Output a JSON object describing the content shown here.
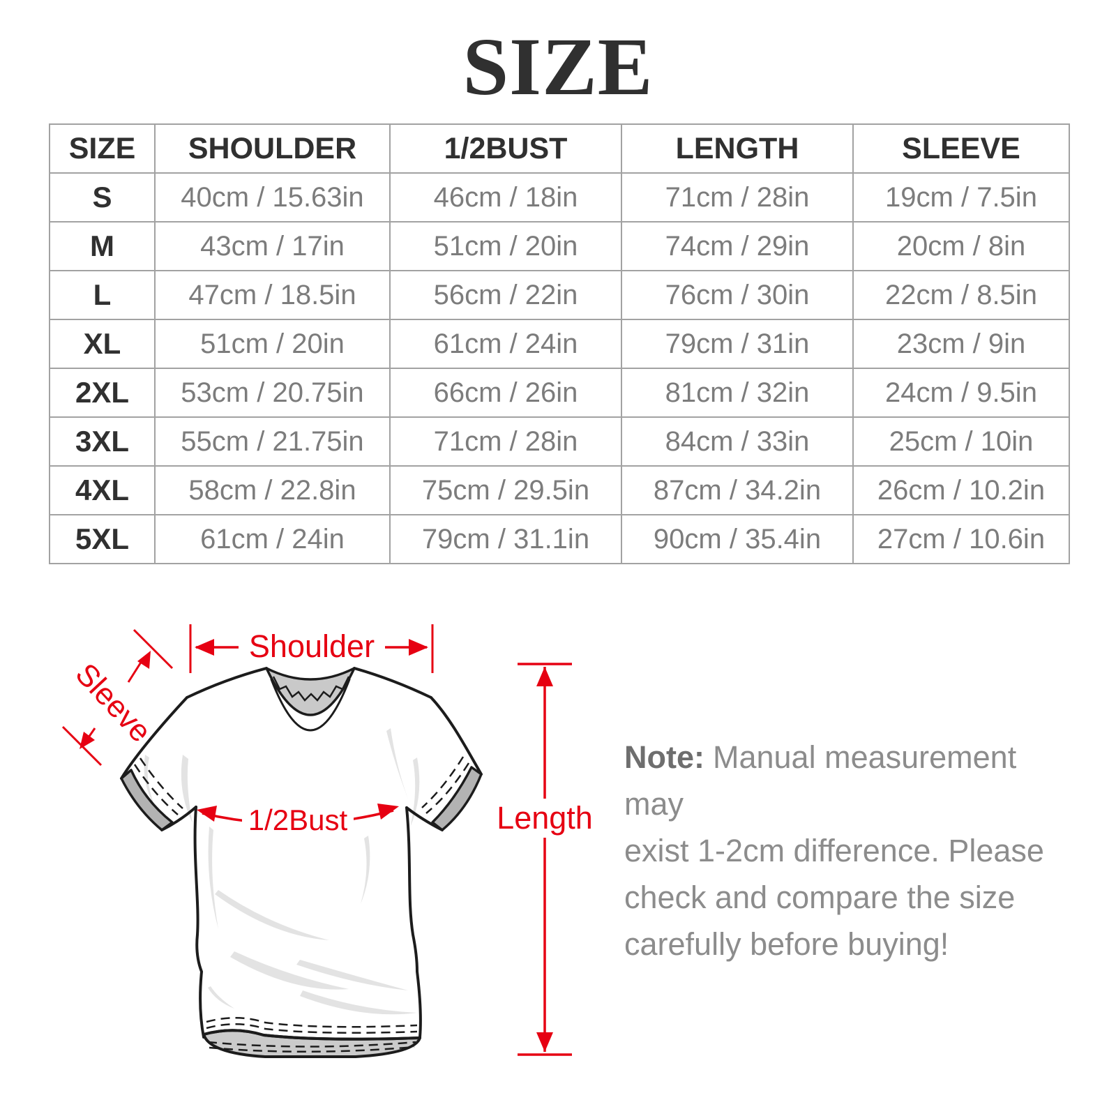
{
  "title": "SIZE",
  "table": {
    "columns": [
      "SIZE",
      "SHOULDER",
      "1/2BUST",
      "LENGTH",
      "SLEEVE"
    ],
    "rows": [
      [
        "S",
        "40cm / 15.63in",
        "46cm / 18in",
        "71cm / 28in",
        "19cm / 7.5in"
      ],
      [
        "M",
        "43cm / 17in",
        "51cm / 20in",
        "74cm / 29in",
        "20cm / 8in"
      ],
      [
        "L",
        "47cm / 18.5in",
        "56cm / 22in",
        "76cm / 30in",
        "22cm / 8.5in"
      ],
      [
        "XL",
        "51cm / 20in",
        "61cm / 24in",
        "79cm / 31in",
        "23cm / 9in"
      ],
      [
        "2XL",
        "53cm / 20.75in",
        "66cm / 26in",
        "81cm / 32in",
        "24cm / 9.5in"
      ],
      [
        "3XL",
        "55cm / 21.75in",
        "71cm / 28in",
        "84cm / 33in",
        "25cm / 10in"
      ],
      [
        "4XL",
        "58cm / 22.8in",
        "75cm / 29.5in",
        "87cm / 34.2in",
        "26cm / 10.2in"
      ],
      [
        "5XL",
        "61cm / 24in",
        "79cm / 31.1in",
        "90cm / 35.4in",
        "27cm / 10.6in"
      ]
    ]
  },
  "diagram": {
    "labels": {
      "shoulder": "Shoulder",
      "sleeve": "Sleeve",
      "bust": "1/2Bust",
      "length": "Length"
    }
  },
  "note": {
    "label": "Note:",
    "line1": "Manual measurement may",
    "lines": [
      "exist 1-2cm difference. Please",
      "check and compare the size",
      "carefully before buying!"
    ]
  },
  "colors": {
    "annotation_red": "#e60012",
    "title_text": "#303030",
    "value_text": "#7c7c7c",
    "table_border": "#a2a2a2",
    "note_text": "#8c8c8c"
  }
}
